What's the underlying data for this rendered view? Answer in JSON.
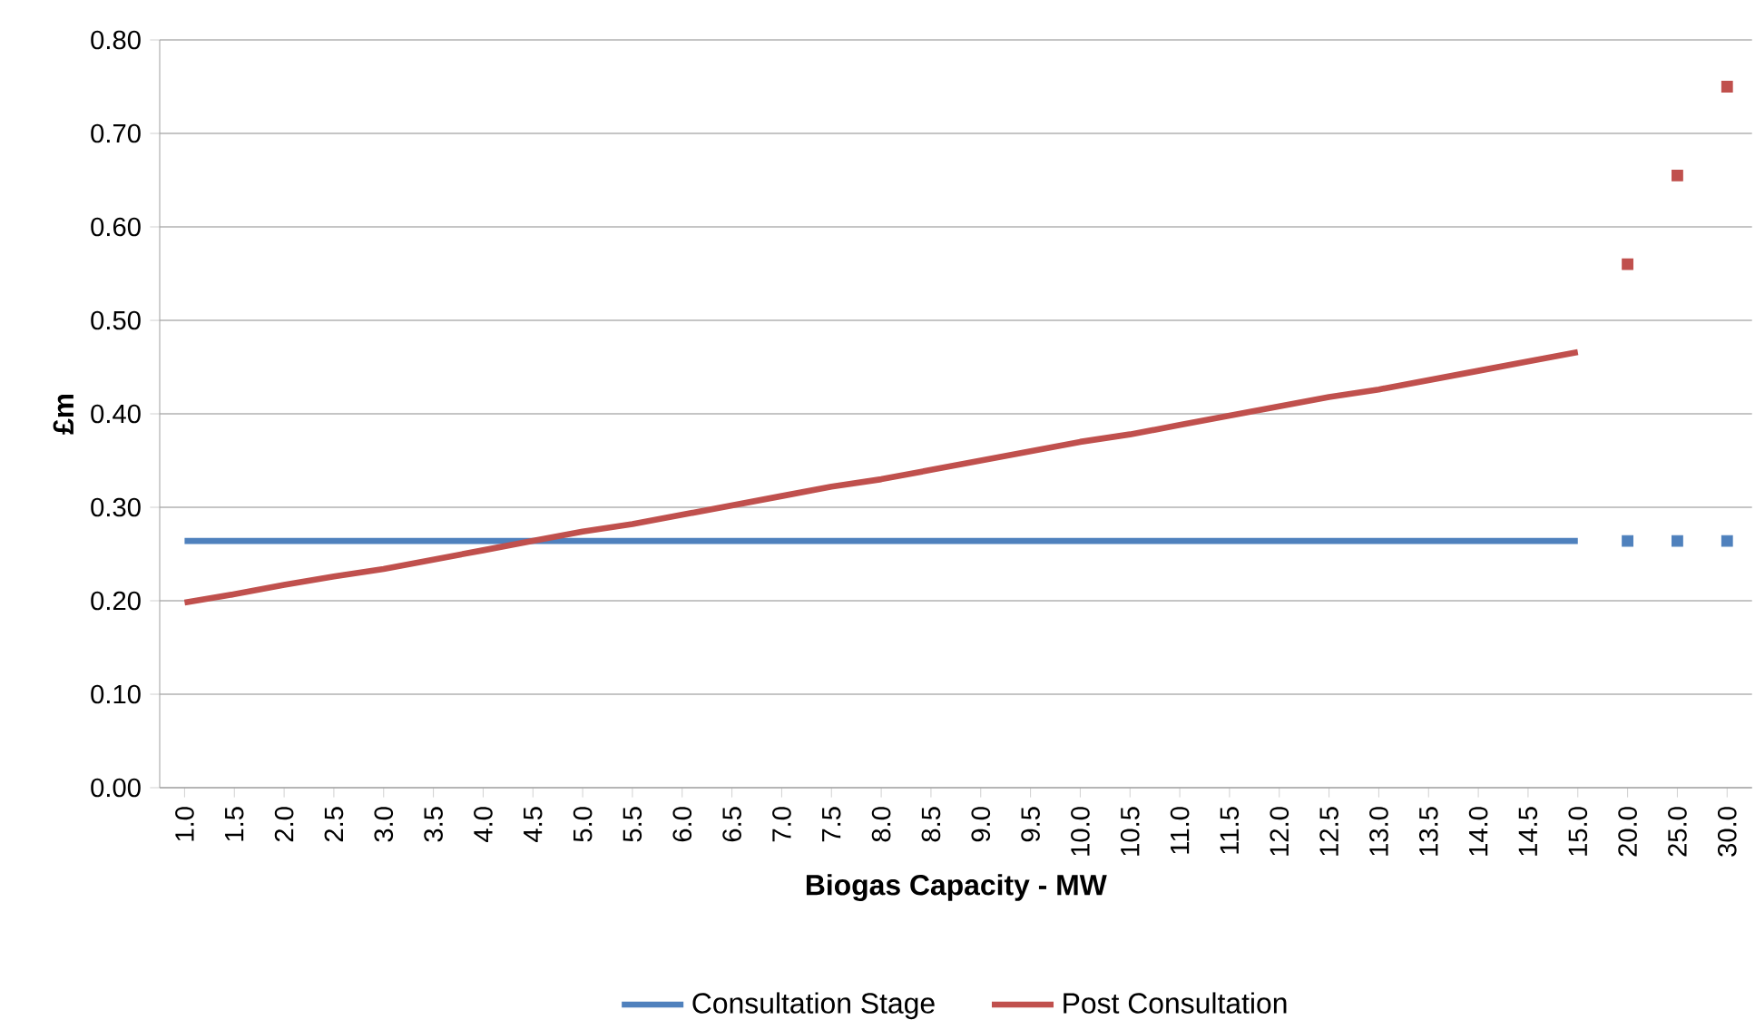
{
  "chart_data": {
    "type": "line",
    "xlabel": "Biogas Capacity - MW",
    "ylabel": "£m",
    "categories": [
      "1.0",
      "1.5",
      "2.0",
      "2.5",
      "3.0",
      "3.5",
      "4.0",
      "4.5",
      "5.0",
      "5.5",
      "6.0",
      "6.5",
      "7.0",
      "7.5",
      "8.0",
      "8.5",
      "9.0",
      "9.5",
      "10.0",
      "10.5",
      "11.0",
      "11.5",
      "12.0",
      "12.5",
      "13.0",
      "13.5",
      "14.0",
      "14.5",
      "15.0",
      "20.0",
      "25.0",
      "30.0"
    ],
    "series": [
      {
        "name": "Consultation Stage",
        "marker": "none",
        "color": "#4f81bd",
        "values": [
          0.264,
          0.264,
          0.264,
          0.264,
          0.264,
          0.264,
          0.264,
          0.264,
          0.264,
          0.264,
          0.264,
          0.264,
          0.264,
          0.264,
          0.264,
          0.264,
          0.264,
          0.264,
          0.264,
          0.264,
          0.264,
          0.264,
          0.264,
          0.264,
          0.264,
          0.264,
          0.264,
          0.264,
          0.264,
          null,
          null,
          null
        ]
      },
      {
        "name": "Post Consultation",
        "marker": "none",
        "color": "#c0504d",
        "values": [
          0.198,
          0.207,
          0.217,
          0.226,
          0.234,
          0.244,
          0.254,
          0.264,
          0.274,
          0.282,
          0.292,
          0.302,
          0.312,
          0.322,
          0.33,
          0.34,
          0.35,
          0.36,
          0.37,
          0.378,
          0.388,
          0.398,
          0.408,
          0.418,
          0.426,
          0.436,
          0.446,
          0.456,
          0.466,
          null,
          null,
          null
        ]
      },
      {
        "type": "scatter",
        "marker": "square",
        "color": "#4f81bd",
        "values": [
          null,
          null,
          null,
          null,
          null,
          null,
          null,
          null,
          null,
          null,
          null,
          null,
          null,
          null,
          null,
          null,
          null,
          null,
          null,
          null,
          null,
          null,
          null,
          null,
          null,
          null,
          null,
          null,
          null,
          0.264,
          0.264,
          0.264
        ]
      },
      {
        "type": "scatter",
        "marker": "square",
        "color": "#c0504d",
        "values": [
          null,
          null,
          null,
          null,
          null,
          null,
          null,
          null,
          null,
          null,
          null,
          null,
          null,
          null,
          null,
          null,
          null,
          null,
          null,
          null,
          null,
          null,
          null,
          null,
          null,
          null,
          null,
          null,
          null,
          0.56,
          0.655,
          0.75
        ]
      }
    ],
    "ylim": [
      0,
      0.8
    ],
    "yticks": [
      {
        "value": 0,
        "label": "0.00"
      },
      {
        "value": 0.1,
        "label": "0.10"
      },
      {
        "value": 0.2,
        "label": "0.20"
      },
      {
        "value": 0.3,
        "label": "0.30"
      },
      {
        "value": 0.4,
        "label": "0.40"
      },
      {
        "value": 0.5,
        "label": "0.50"
      },
      {
        "value": 0.6,
        "label": "0.60"
      },
      {
        "value": 0.7,
        "label": "0.70"
      },
      {
        "value": 0.8,
        "label": "0.80"
      }
    ],
    "grid": "y",
    "legend": "bottom"
  }
}
